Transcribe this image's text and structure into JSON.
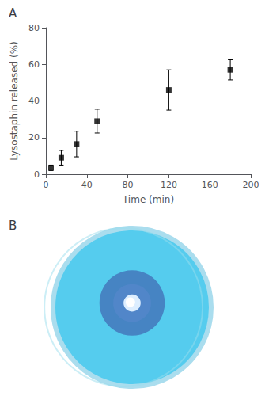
{
  "chart_data": [
    {
      "type": "scatter",
      "title": "A",
      "xlabel": "Time (min)",
      "ylabel": "Lysostaphin released (%)",
      "x": [
        5,
        15,
        30,
        50,
        120,
        180
      ],
      "series": [
        {
          "values": [
            3.5,
            9.0,
            16.5,
            29.0,
            46.0,
            57.0
          ],
          "yerr": [
            1.5,
            4.0,
            7.0,
            6.5,
            11.0,
            5.5
          ],
          "color": "#000000",
          "marker": "square"
        }
      ],
      "xlim": [
        0,
        200
      ],
      "xticks": [
        0,
        40,
        80,
        120,
        160,
        200
      ],
      "ylim": [
        0,
        80
      ],
      "yticks": [
        0,
        20,
        40,
        60,
        80
      ],
      "grid": false
    },
    {
      "type": "dish",
      "title": "B",
      "colors": [
        "#55ccee",
        "#aaddee",
        "#4477bb",
        "#5588cc",
        "#ddeeff",
        "#ffffff",
        "#99ddee"
      ]
    }
  ]
}
